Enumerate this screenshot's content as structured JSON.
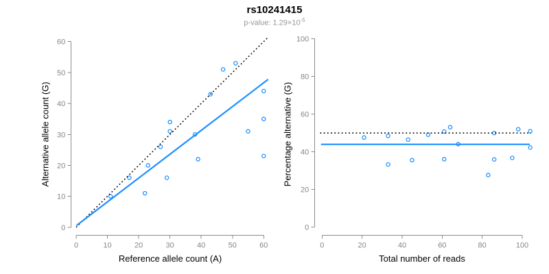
{
  "header": {
    "title": "rs10241415",
    "pvalue_prefix": "p-value: 1.29×10",
    "pvalue_exponent": "-5"
  },
  "colors": {
    "blue": "#1E90FF",
    "axis": "#8A8A8A",
    "dotted_black": "#000000",
    "title_black": "#000000",
    "subtitle_gray": "#979797"
  },
  "chart_data": [
    {
      "type": "scatter",
      "name": "allele-counts-panel",
      "title": "rs10241415",
      "subtitle": "p-value: 1.29×10^-5",
      "xlabel": "Reference allele count (A)",
      "ylabel": "Alternative allele count (G)",
      "xlim": [
        0,
        60
      ],
      "ylim": [
        0,
        60
      ],
      "xticks": [
        0,
        10,
        20,
        30,
        40,
        50,
        60
      ],
      "yticks": [
        0,
        10,
        20,
        30,
        40,
        50,
        60
      ],
      "grid": false,
      "legend": null,
      "points": [
        [
          11,
          10
        ],
        [
          17,
          16
        ],
        [
          22,
          11
        ],
        [
          23,
          20
        ],
        [
          27,
          26
        ],
        [
          29,
          16
        ],
        [
          30,
          31
        ],
        [
          30,
          34
        ],
        [
          38,
          30
        ],
        [
          39,
          22
        ],
        [
          43,
          43
        ],
        [
          47,
          51
        ],
        [
          51,
          53
        ],
        [
          55,
          31
        ],
        [
          60,
          23
        ],
        [
          60,
          35
        ],
        [
          60,
          44
        ]
      ],
      "identity_line": {
        "style": "dotted",
        "slope": 1,
        "intercept": 0,
        "x_range": [
          0,
          61.4
        ]
      },
      "fit_line": {
        "style": "solid",
        "slope": 0.77,
        "intercept": 0.5,
        "x_range": [
          0.1,
          61.4
        ]
      }
    },
    {
      "type": "scatter",
      "name": "percentage-panel",
      "xlabel": "Total number of reads",
      "ylabel": "Percentage alternative (G)",
      "xlim": [
        0,
        100
      ],
      "ylim": [
        0,
        100
      ],
      "xticks": [
        0,
        20,
        40,
        60,
        80,
        100
      ],
      "yticks": [
        0,
        20,
        40,
        60,
        80,
        100
      ],
      "grid": false,
      "legend": null,
      "points": [
        [
          21,
          47.6
        ],
        [
          33,
          48.5
        ],
        [
          33,
          33.3
        ],
        [
          43,
          46.5
        ],
        [
          45,
          35.6
        ],
        [
          53,
          49.1
        ],
        [
          61,
          50.8
        ],
        [
          61,
          36.1
        ],
        [
          64,
          53.1
        ],
        [
          68,
          44.1
        ],
        [
          83,
          27.7
        ],
        [
          86,
          36.0
        ],
        [
          86,
          50.0
        ],
        [
          95,
          36.8
        ],
        [
          98,
          52.0
        ],
        [
          104,
          51.0
        ],
        [
          104,
          42.3
        ]
      ],
      "hline_dotted": 50,
      "hline_solid": 44
    }
  ]
}
